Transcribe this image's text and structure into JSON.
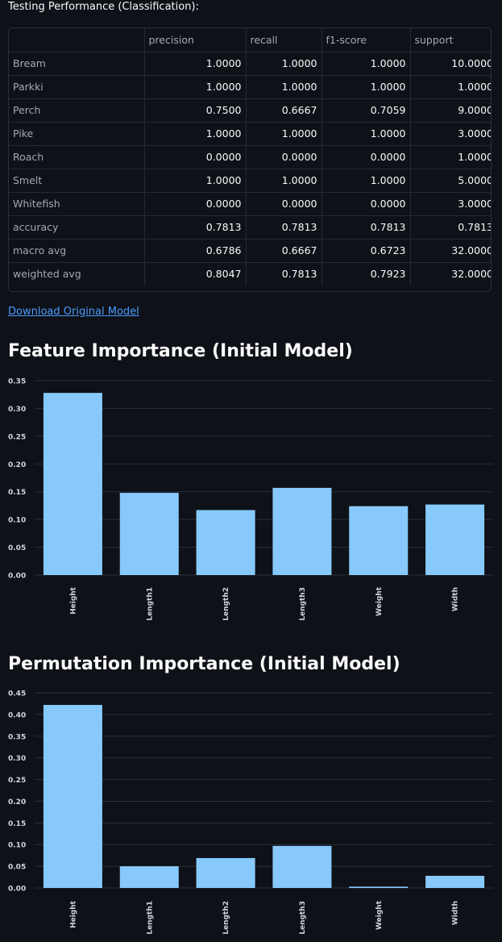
{
  "report": {
    "caption": "Testing Performance (Classification):",
    "columns": [
      "",
      "precision",
      "recall",
      "f1-score",
      "support"
    ],
    "rows": [
      {
        "label": "Bream",
        "precision": "1.0000",
        "recall": "1.0000",
        "f1": "1.0000",
        "support": "10.0000"
      },
      {
        "label": "Parkki",
        "precision": "1.0000",
        "recall": "1.0000",
        "f1": "1.0000",
        "support": "1.0000"
      },
      {
        "label": "Perch",
        "precision": "0.7500",
        "recall": "0.6667",
        "f1": "0.7059",
        "support": "9.0000"
      },
      {
        "label": "Pike",
        "precision": "1.0000",
        "recall": "1.0000",
        "f1": "1.0000",
        "support": "3.0000"
      },
      {
        "label": "Roach",
        "precision": "0.0000",
        "recall": "0.0000",
        "f1": "0.0000",
        "support": "1.0000"
      },
      {
        "label": "Smelt",
        "precision": "1.0000",
        "recall": "1.0000",
        "f1": "1.0000",
        "support": "5.0000"
      },
      {
        "label": "Whitefish",
        "precision": "0.0000",
        "recall": "0.0000",
        "f1": "0.0000",
        "support": "3.0000"
      },
      {
        "label": "accuracy",
        "precision": "0.7813",
        "recall": "0.7813",
        "f1": "0.7813",
        "support": "0.7813"
      },
      {
        "label": "macro avg",
        "precision": "0.6786",
        "recall": "0.6667",
        "f1": "0.6723",
        "support": "32.0000"
      },
      {
        "label": "weighted avg",
        "precision": "0.8047",
        "recall": "0.7813",
        "f1": "0.7923",
        "support": "32.0000"
      }
    ]
  },
  "download": {
    "label": "Download Original Model"
  },
  "colors": {
    "bar": "#87c9fc",
    "grid": "#2a2f38",
    "axis_text": "#d2d5db",
    "background": "#0e1117"
  },
  "chart_data": [
    {
      "type": "bar",
      "title": "Feature Importance (Initial Model)",
      "categories": [
        "Height",
        "Length1",
        "Length2",
        "Length3",
        "Weight",
        "Width"
      ],
      "values": [
        0.328,
        0.148,
        0.117,
        0.157,
        0.124,
        0.127
      ],
      "yticks": [
        "0.00",
        "0.05",
        "0.10",
        "0.15",
        "0.20",
        "0.25",
        "0.30",
        "0.35"
      ],
      "ylim": [
        0,
        0.35
      ],
      "xlabel": "",
      "ylabel": "",
      "grid": true
    },
    {
      "type": "bar",
      "title": "Permutation Importance (Initial Model)",
      "categories": [
        "Height",
        "Length1",
        "Length2",
        "Length3",
        "Weight",
        "Width"
      ],
      "values": [
        0.422,
        0.05,
        0.069,
        0.097,
        0.003,
        0.028
      ],
      "yticks": [
        "0.00",
        "0.05",
        "0.10",
        "0.15",
        "0.20",
        "0.25",
        "0.30",
        "0.35",
        "0.40",
        "0.45"
      ],
      "ylim": [
        0,
        0.45
      ],
      "xlabel": "",
      "ylabel": "",
      "grid": true
    }
  ]
}
